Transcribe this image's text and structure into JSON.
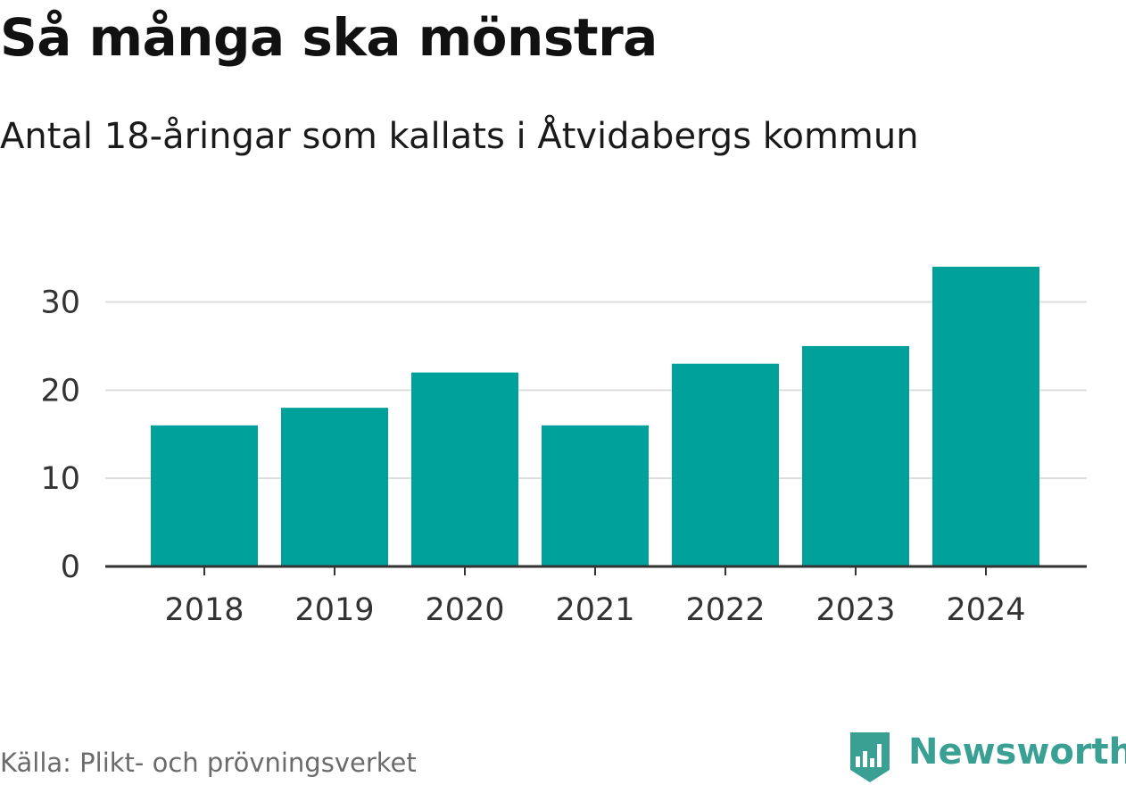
{
  "header": {
    "title": "Så många ska mönstra",
    "subtitle": "Antal 18-åringar som kallats i Åtvidabergs kommun"
  },
  "chart_data": {
    "type": "bar",
    "title": "Så många ska mönstra",
    "subtitle": "Antal 18-åringar som kallats i Åtvidabergs kommun",
    "categories": [
      "2018",
      "2019",
      "2020",
      "2021",
      "2022",
      "2023",
      "2024"
    ],
    "values": [
      16,
      18,
      22,
      16,
      23,
      25,
      34
    ],
    "xlabel": "",
    "ylabel": "",
    "ylim": [
      0,
      34
    ],
    "yticks": [
      0,
      10,
      20,
      30
    ],
    "grid": true,
    "bar_color": "#00a19a"
  },
  "footer": {
    "source": "Källa: Plikt- och prövningsverket",
    "brand": "Newsworthy"
  },
  "colors": {
    "bar": "#00a19a",
    "grid": "#dddddd",
    "axis": "#333333",
    "brand": "#3aa093"
  }
}
